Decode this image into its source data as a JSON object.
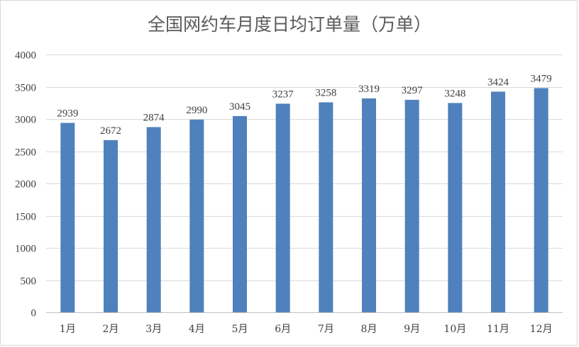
{
  "chart_data": {
    "type": "bar",
    "title": "全国网约车月度日均订单量（万单）",
    "categories": [
      "1月",
      "2月",
      "3月",
      "4月",
      "5月",
      "6月",
      "7月",
      "8月",
      "9月",
      "10月",
      "11月",
      "12月"
    ],
    "values": [
      2939,
      2672,
      2874,
      2990,
      3045,
      3237,
      3258,
      3319,
      3297,
      3248,
      3424,
      3479
    ],
    "ylim": [
      0,
      4000
    ],
    "yticks": [
      0,
      500,
      1000,
      1500,
      2000,
      2500,
      3000,
      3500,
      4000
    ],
    "grid": true,
    "legend": "none",
    "bar_color": "#4f81bd",
    "data_labels": true
  }
}
